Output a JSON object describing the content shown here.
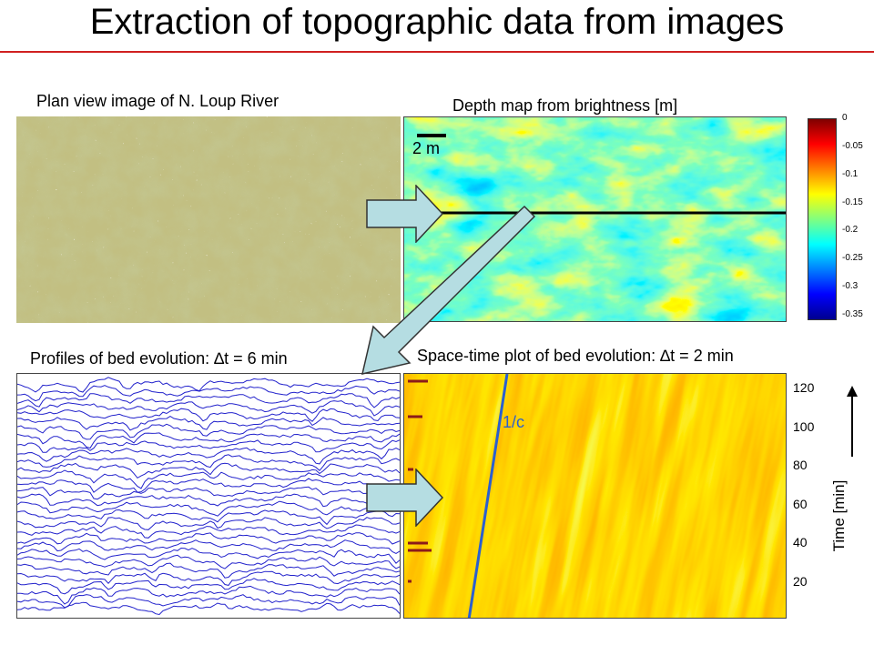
{
  "title": "Extraction of topographic data from images",
  "panels": {
    "plan_view": {
      "caption": "Plan view image of N. Loup River"
    },
    "depth_map": {
      "caption": "Depth map from brightness [m]",
      "scale_label": "2 m"
    },
    "profiles": {
      "caption": "Profiles of bed evolution: ∆t = 6 min"
    },
    "space_time": {
      "caption": "Space-time plot of bed evolution: ∆t = 2 min",
      "line_label": "1/c"
    }
  },
  "colorbar": {
    "ticks": [
      "0",
      "-0.05",
      "-0.1",
      "-0.15",
      "-0.2",
      "-0.25",
      "-0.3",
      "-0.35"
    ],
    "colors": [
      "#7f0000",
      "#ff0000",
      "#ff8000",
      "#ffff00",
      "#80ff80",
      "#00ffff",
      "#0080ff",
      "#0000ff",
      "#00008f"
    ]
  },
  "time_axis": {
    "label": "Time [min]",
    "ticks": [
      "120",
      "100",
      "80",
      "60",
      "40",
      "20"
    ]
  },
  "colors": {
    "title_rule": "#d02020",
    "profile_line": "#2222cc",
    "arrow_fill": "#b5dde2",
    "time_line": "#2a5fd0"
  }
}
